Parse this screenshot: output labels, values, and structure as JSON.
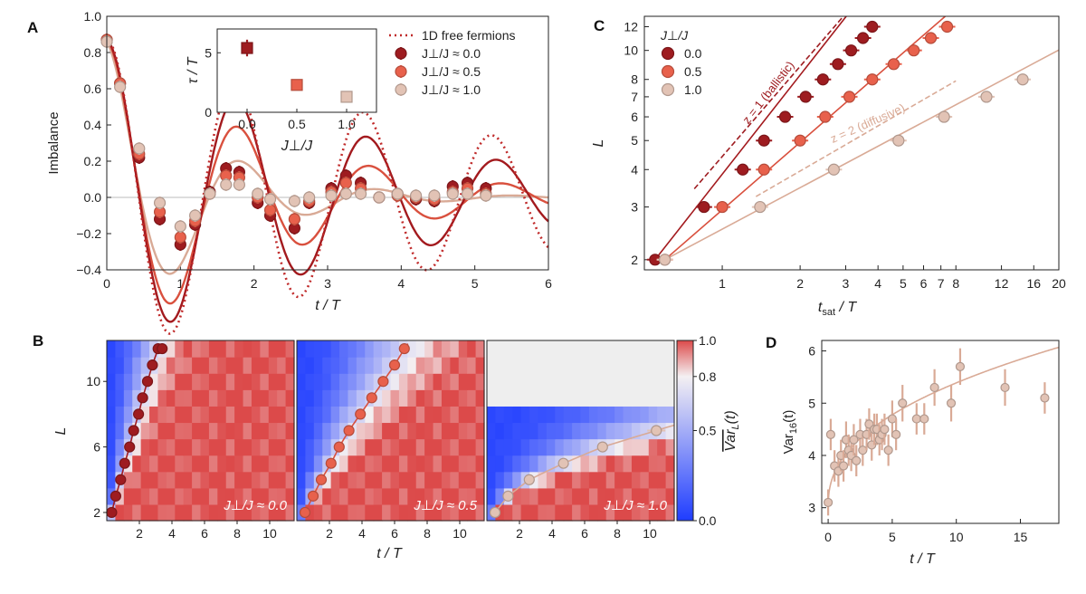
{
  "colors": {
    "j00": "#9e1c20",
    "j05": "#e8614c",
    "j10": "#e2c3b5",
    "j00_line": "#a31a1e",
    "j05_line": "#d9503e",
    "j10_line": "#d9aa96",
    "free_fermions": "#c02a2a",
    "heat_low": "#1f3dff",
    "heat_mid": "#f4f0f2",
    "heat_high": "#dc4a4a",
    "missing": "#eeeeee"
  },
  "chart_data": [
    {
      "id": "A",
      "panel_label": "A",
      "type": "line",
      "xlabel": "t / T",
      "ylabel": "Imbalance",
      "xlim": [
        0,
        6
      ],
      "ylim": [
        -0.4,
        1.0
      ],
      "xticks": [
        "0",
        "1",
        "2",
        "3",
        "4",
        "5",
        "6"
      ],
      "yticks": [
        "−0.4",
        "−0.2",
        "0.0",
        "0.2",
        "0.4",
        "0.6",
        "0.8",
        "1.0"
      ],
      "legend": {
        "position": "top-right",
        "entries": [
          "1D free fermions",
          "J⊥/J ≈ 0.0",
          "J⊥/J ≈ 0.5",
          "J⊥/J ≈ 1.0"
        ]
      },
      "series": [
        {
          "name": "J⊥/J ≈ 0.0",
          "color_key": "j00",
          "x": [
            0.0,
            0.18,
            0.44,
            0.72,
            1.0,
            1.2,
            1.4,
            1.62,
            1.8,
            2.05,
            2.22,
            2.55,
            2.75,
            3.05,
            3.25,
            3.45,
            3.7,
            3.95,
            4.2,
            4.45,
            4.7,
            4.9,
            5.15
          ],
          "y": [
            0.87,
            0.63,
            0.22,
            -0.12,
            -0.26,
            -0.15,
            0.03,
            0.16,
            0.14,
            -0.03,
            -0.1,
            -0.17,
            -0.03,
            0.05,
            0.12,
            0.08,
            0.0,
            0.02,
            -0.01,
            -0.02,
            0.06,
            0.08,
            0.05
          ]
        },
        {
          "name": "J⊥/J ≈ 0.5",
          "color_key": "j05",
          "x": [
            0.0,
            0.18,
            0.44,
            0.72,
            1.0,
            1.2,
            1.4,
            1.62,
            1.8,
            2.05,
            2.22,
            2.55,
            2.75,
            3.05,
            3.25,
            3.45,
            3.7,
            3.95,
            4.2,
            4.45,
            4.7,
            4.9,
            5.15
          ],
          "y": [
            0.87,
            0.63,
            0.24,
            -0.08,
            -0.22,
            -0.13,
            0.02,
            0.12,
            0.11,
            0.0,
            -0.07,
            -0.12,
            -0.02,
            0.03,
            0.08,
            0.05,
            0.0,
            0.01,
            0.0,
            -0.01,
            0.03,
            0.05,
            0.02
          ]
        },
        {
          "name": "J⊥/J ≈ 1.0",
          "color_key": "j10",
          "x": [
            0.0,
            0.18,
            0.44,
            0.72,
            1.0,
            1.2,
            1.4,
            1.62,
            1.8,
            2.05,
            2.22,
            2.55,
            2.75,
            3.05,
            3.25,
            3.45,
            3.7,
            3.95,
            4.2,
            4.45,
            4.7,
            4.9,
            5.15
          ],
          "y": [
            0.86,
            0.61,
            0.27,
            -0.03,
            -0.16,
            -0.1,
            0.02,
            0.07,
            0.07,
            0.02,
            -0.01,
            -0.02,
            0.0,
            0.01,
            0.02,
            0.02,
            0.0,
            0.02,
            0.01,
            0.01,
            0.02,
            0.02,
            0.01
          ]
        }
      ],
      "inset": {
        "type": "scatter",
        "xlabel": "J⊥/J",
        "ylabel": "τ / T",
        "xlim": [
          -0.3,
          1.3
        ],
        "ylim": [
          0,
          7
        ],
        "xticks": [
          "0.0",
          "0.5",
          "1.0"
        ],
        "yticks": [
          "0",
          "5"
        ],
        "x": [
          0.0,
          0.5,
          1.0
        ],
        "y": [
          5.4,
          2.3,
          1.3
        ],
        "yerr": [
          0.7,
          0.2,
          0.15
        ]
      }
    },
    {
      "id": "C",
      "panel_label": "C",
      "type": "scatter",
      "xscale": "log",
      "yscale": "log",
      "xlabel": "t",
      "xlabel_sub": "sat",
      "xlabel_tail": " / T",
      "ylabel": "L",
      "xlim": [
        0.5,
        20
      ],
      "ylim": [
        1.85,
        13
      ],
      "xticks": [
        "1",
        "2",
        "3",
        "4",
        "5",
        "6",
        "7",
        "8",
        "12",
        "16",
        "20"
      ],
      "yticks": [
        "2",
        "3",
        "4",
        "5",
        "6",
        "7",
        "8",
        "10",
        "12"
      ],
      "legend": {
        "position": "top-left",
        "title": "J⊥/J",
        "entries": [
          "0.0",
          "0.5",
          "1.0"
        ]
      },
      "series": [
        {
          "name": "0.0",
          "color_key": "j00",
          "x": [
            0.55,
            0.85,
            1.2,
            1.45,
            1.75,
            2.1,
            2.45,
            2.8,
            3.15,
            3.5,
            3.8
          ],
          "y": [
            2,
            3,
            4,
            5,
            6,
            7,
            8,
            9,
            10,
            11,
            12
          ]
        },
        {
          "name": "0.5",
          "color_key": "j05",
          "x": [
            0.6,
            1.0,
            1.45,
            2.0,
            2.5,
            3.1,
            3.8,
            4.6,
            5.5,
            6.4,
            7.4
          ],
          "y": [
            2,
            3,
            4,
            5,
            6,
            7,
            8,
            9,
            10,
            11,
            12
          ]
        },
        {
          "name": "1.0",
          "color_key": "j10",
          "x": [
            0.6,
            1.4,
            2.7,
            4.8,
            7.2,
            10.5,
            14.5
          ],
          "y": [
            2,
            3,
            4,
            5,
            6,
            7,
            8
          ]
        }
      ],
      "annotations": [
        {
          "text": "z = 1 (ballistic)",
          "color_key": "j00"
        },
        {
          "text": "z = 2 (diffusive)",
          "color_key": "j10_line"
        }
      ]
    },
    {
      "id": "B",
      "panel_label": "B",
      "type": "heatmap",
      "xlabel": "t / T",
      "ylabel": "L",
      "colorbar_label": "Var",
      "colorbar_label_sub": "L",
      "colorbar_label_tail": "(t)",
      "colorbar_ticks": [
        "0.0",
        "0.5",
        "0.8",
        "1.0"
      ],
      "ylim": [
        1.5,
        12.5
      ],
      "xlim": [
        0,
        11.5
      ],
      "yticks": [
        "2",
        "6",
        "10"
      ],
      "xticks": [
        "2",
        "4",
        "6",
        "8",
        "10"
      ],
      "panels": [
        {
          "label": "J⊥/J ≈ 0.0",
          "color_key": "j00",
          "max_L": 12,
          "front_x": [
            0.3,
            0.55,
            0.85,
            1.1,
            1.4,
            1.65,
            1.95,
            2.2,
            2.5,
            2.8,
            3.15,
            3.4
          ],
          "front_y": [
            2,
            3,
            4,
            5,
            6,
            7,
            8,
            9,
            10,
            11,
            12,
            12
          ]
        },
        {
          "label": "J⊥/J ≈ 0.5",
          "color_key": "j05",
          "max_L": 12,
          "front_x": [
            0.5,
            1.0,
            1.5,
            2.1,
            2.6,
            3.2,
            3.9,
            4.6,
            5.3,
            6.0,
            6.6
          ],
          "front_y": [
            2,
            3,
            4,
            5,
            6,
            7,
            8,
            9,
            10,
            11,
            12
          ]
        },
        {
          "label": "J⊥/J ≈ 1.0",
          "color_key": "j10",
          "max_L": 8,
          "front_x": [
            0.5,
            1.3,
            2.6,
            4.7,
            7.1,
            10.4
          ],
          "front_y": [
            2,
            3,
            4,
            5,
            6,
            7
          ]
        }
      ]
    },
    {
      "id": "D",
      "panel_label": "D",
      "type": "scatter",
      "xlabel": "t / T",
      "ylabel": "Var",
      "ylabel_sub": "16",
      "ylabel_tail": "(t)",
      "xlim": [
        -0.5,
        18
      ],
      "ylim": [
        2.7,
        6.2
      ],
      "xticks": [
        "0",
        "5",
        "10",
        "15"
      ],
      "yticks": [
        "3",
        "4",
        "5",
        "6"
      ],
      "color_key": "j10",
      "x": [
        0.0,
        0.2,
        0.5,
        0.8,
        1.0,
        1.2,
        1.4,
        1.6,
        1.8,
        2.0,
        2.2,
        2.5,
        2.7,
        3.0,
        3.2,
        3.4,
        3.6,
        3.8,
        4.0,
        4.2,
        4.4,
        4.7,
        5.0,
        5.3,
        5.8,
        6.9,
        7.5,
        8.3,
        9.6,
        10.3,
        13.8,
        16.9
      ],
      "y": [
        3.1,
        4.4,
        3.8,
        3.7,
        4.0,
        3.8,
        4.3,
        4.1,
        4.0,
        4.3,
        3.9,
        4.4,
        4.1,
        4.4,
        4.6,
        4.2,
        4.5,
        4.5,
        4.3,
        4.4,
        4.5,
        4.1,
        4.7,
        4.4,
        5.0,
        4.7,
        4.7,
        5.3,
        5.0,
        5.7,
        5.3,
        5.1
      ],
      "yerr": [
        0.25,
        0.3,
        0.3,
        0.3,
        0.3,
        0.3,
        0.35,
        0.3,
        0.3,
        0.3,
        0.3,
        0.3,
        0.3,
        0.3,
        0.3,
        0.3,
        0.3,
        0.3,
        0.3,
        0.3,
        0.3,
        0.3,
        0.35,
        0.3,
        0.35,
        0.3,
        0.3,
        0.35,
        0.35,
        0.35,
        0.35,
        0.3
      ]
    }
  ]
}
